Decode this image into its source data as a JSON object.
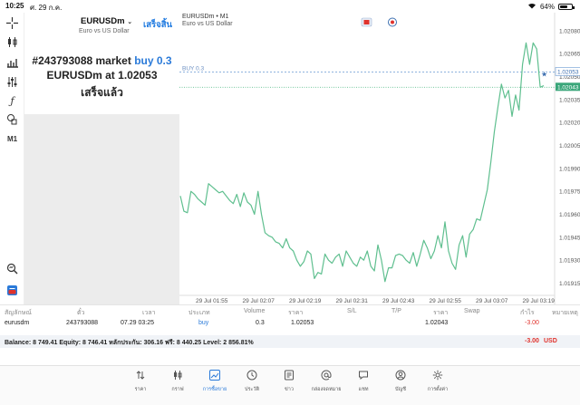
{
  "status_bar": {
    "time": "10:25",
    "date": "ศ. 29 ก.ค.",
    "battery": "64%",
    "battery_level": 0.64
  },
  "toolbar": {
    "timeframe": "M1"
  },
  "panel": {
    "symbol": "EURUSDm",
    "symbol_description": "Euro vs US Dollar",
    "done_label": "เสร็จสิ้น",
    "message_line1_prefix": "#243793088 market",
    "message_line1_action": "buy 0.3",
    "message_line2_prefix": "EURUSDm at",
    "message_line2_price": "1.02053",
    "message_line3": "เสร็จแล้ว"
  },
  "chart": {
    "title": "EURUSDm • M1",
    "subtitle": "Euro vs US Dollar",
    "buy_label": "BUY 0.3"
  },
  "chart_data": {
    "type": "line",
    "series_color": "#5fbf8f",
    "price_ticks": [
      "1.02080",
      "1.02065",
      "1.02050",
      "1.02035",
      "1.02020",
      "1.02005",
      "1.01990",
      "1.01975",
      "1.01960",
      "1.01945",
      "1.01930",
      "1.01915"
    ],
    "time_labels": [
      "29 Jul 01:55",
      "29 Jul 02:07",
      "29 Jul 02:19",
      "29 Jul 02:31",
      "29 Jul 02:43",
      "29 Jul 02:55",
      "29 Jul 03:07",
      "29 Jul 03:19"
    ],
    "buy_price_label": "1.02053",
    "current_price_label": "1.02043",
    "buy_level": 1.02053,
    "current_level": 1.02043,
    "ylim": [
      1.01907,
      1.02087
    ],
    "values": [
      1.01972,
      1.01962,
      1.01961,
      1.01975,
      1.01973,
      1.0197,
      1.01968,
      1.01966,
      1.0198,
      1.01978,
      1.01976,
      1.01974,
      1.01975,
      1.01972,
      1.01969,
      1.01967,
      1.01973,
      1.01965,
      1.01974,
      1.01968,
      1.01966,
      1.0196,
      1.01975,
      1.0196,
      1.01948,
      1.01946,
      1.01945,
      1.01942,
      1.01941,
      1.01938,
      1.01944,
      1.01938,
      1.01936,
      1.0193,
      1.01926,
      1.01929,
      1.01936,
      1.01934,
      1.01918,
      1.01922,
      1.01921,
      1.01934,
      1.0193,
      1.01928,
      1.01932,
      1.01934,
      1.01926,
      1.01936,
      1.01932,
      1.01928,
      1.01926,
      1.01932,
      1.0193,
      1.01936,
      1.01926,
      1.01923,
      1.0194,
      1.0193,
      1.01916,
      1.01925,
      1.01925,
      1.01933,
      1.01934,
      1.01933,
      1.0193,
      1.01928,
      1.01935,
      1.01926,
      1.01934,
      1.01943,
      1.01938,
      1.01931,
      1.01936,
      1.01946,
      1.01938,
      1.01955,
      1.01936,
      1.01928,
      1.01924,
      1.0194,
      1.01946,
      1.01932,
      1.01947,
      1.0195,
      1.01957,
      1.01956,
      1.01966,
      1.01976,
      1.01994,
      1.02014,
      1.0203,
      1.02045,
      1.02036,
      1.02041,
      1.02024,
      1.02038,
      1.02028,
      1.02058,
      1.02072,
      1.02058,
      1.02072,
      1.02068,
      1.02043,
      1.02044
    ]
  },
  "table": {
    "headers": [
      "สัญลักษณ์",
      "ตั๋ว",
      "เวลา",
      "ประเภท",
      "Volume",
      "ราคา",
      "S/L",
      "T/P",
      "ราคา",
      "Swap",
      "กำไร",
      "หมายเหตุ"
    ],
    "row": {
      "symbol": "eurusdm",
      "ticket": "243793088",
      "time": "07.29 03:25",
      "type": "buy",
      "volume": "0.3",
      "open_price": "1.02053",
      "current_price": "1.02043",
      "profit": "-3.00"
    },
    "balance_text": "Balance: 8 749.41 Equity: 8 746.41 หลักประกัน: 306.16 ฟรี: 8 440.25 Level: 2 856.81%",
    "total_profit": "-3.00",
    "currency": "USD"
  },
  "tabbar": {
    "items": [
      {
        "label": "ราคา",
        "icon": "arrows-updown-icon"
      },
      {
        "label": "กราฟ",
        "icon": "candles-icon"
      },
      {
        "label": "การซื้อขาย",
        "icon": "trade-chart-icon"
      },
      {
        "label": "ประวัติ",
        "icon": "history-clock-icon"
      },
      {
        "label": "ข่าว",
        "icon": "news-book-icon"
      },
      {
        "label": "กล่องจดหมาย",
        "icon": "at-mail-icon"
      },
      {
        "label": "แชท",
        "icon": "chat-bubble-icon"
      },
      {
        "label": "บัญชี",
        "icon": "account-user-icon"
      },
      {
        "label": "การตั้งค่า",
        "icon": "settings-gear-icon"
      }
    ],
    "active_index": 2,
    "accent": "#2a7ad9"
  }
}
